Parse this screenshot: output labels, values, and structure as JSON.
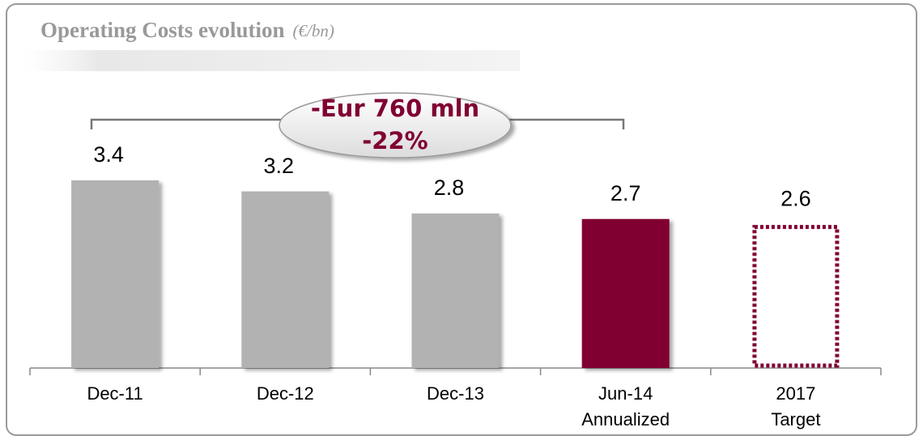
{
  "chart_data": {
    "type": "bar",
    "title": "Operating Costs evolution",
    "subtitle": "(€/bn)",
    "annotation": [
      "-Eur 760 mln",
      "-22%"
    ],
    "categories": [
      [
        "Dec-11"
      ],
      [
        "Dec-12"
      ],
      [
        "Dec-13"
      ],
      [
        "Jun-14",
        "Annualized"
      ],
      [
        "2017",
        "Target"
      ]
    ],
    "values": [
      3.4,
      3.2,
      2.8,
      2.7,
      2.6
    ],
    "colors": [
      "#b2b2b2",
      "#b2b2b2",
      "#b2b2b2",
      "#800033",
      "#800033"
    ],
    "bar_styles": [
      "solid",
      "solid",
      "solid",
      "solid",
      "dotted"
    ]
  }
}
